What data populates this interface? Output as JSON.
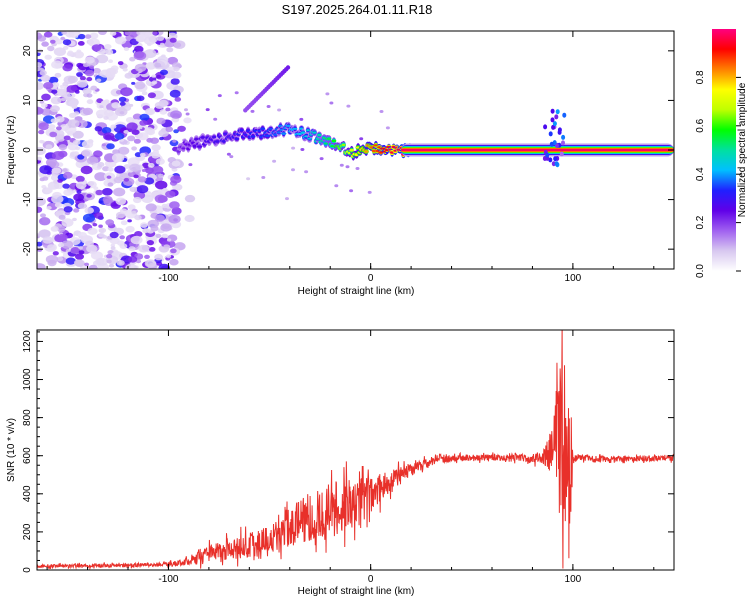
{
  "chart_data": [
    {
      "type": "heatmap",
      "title": "S197.2025.264.01.11.R18",
      "xlabel": "Height of straight line (km)",
      "ylabel": "Frequency (Hz)",
      "xlim": [
        -165,
        150
      ],
      "ylim": [
        -24,
        24
      ],
      "x_ticks": [
        -100,
        0,
        100
      ],
      "y_ticks": [
        -20,
        -10,
        0,
        10,
        20
      ],
      "colorbar": {
        "label": "Normalized spectral amplitude",
        "range": [
          0,
          1
        ],
        "ticks": [
          0.0,
          0.2,
          0.4,
          0.6,
          0.8
        ],
        "colormap": [
          "#ffffff",
          "#d8c8f0",
          "#a060f0",
          "#6000e8",
          "#2020ff",
          "#00c0ff",
          "#00e0a0",
          "#00ff00",
          "#c0ff00",
          "#ffff00",
          "#ff8000",
          "#ff0000",
          "#ff0080"
        ]
      },
      "ridge": {
        "description_free": true,
        "x": [
          -95,
          -90,
          -80,
          -70,
          -60,
          -50,
          -40,
          -30,
          -20,
          -10,
          0,
          10,
          20,
          30,
          50,
          70,
          80,
          85,
          90,
          93,
          95,
          100,
          120,
          150
        ],
        "y": [
          0.5,
          1.0,
          2.0,
          2.5,
          3.5,
          3.5,
          4.5,
          3.0,
          1.5,
          -0.5,
          0.5,
          0.0,
          0.0,
          0.0,
          0.0,
          0.0,
          0.0,
          0.0,
          1.0,
          3.0,
          0.5,
          0.0,
          0.0,
          0.0
        ],
        "amplitude": [
          0.22,
          0.25,
          0.28,
          0.3,
          0.33,
          0.35,
          0.4,
          0.45,
          0.55,
          0.7,
          0.85,
          0.95,
          0.98,
          0.98,
          0.98,
          0.98,
          0.9,
          0.85,
          0.5,
          0.4,
          0.9,
          0.98,
          0.98,
          0.98
        ]
      }
    },
    {
      "type": "line",
      "xlabel": "Height of straight line (km)",
      "ylabel": "SNR (10 * v/v)",
      "xlim": [
        -165,
        150
      ],
      "ylim": [
        0,
        1260
      ],
      "x_ticks": [
        -100,
        0,
        100
      ],
      "y_ticks": [
        0,
        200,
        400,
        600,
        800,
        1000,
        1200
      ],
      "series": [
        {
          "name": "SNR",
          "color": "#e8302a",
          "envelope_x": [
            -165,
            -140,
            -120,
            -100,
            -90,
            -80,
            -70,
            -60,
            -50,
            -40,
            -30,
            -20,
            -10,
            0,
            10,
            20,
            30,
            40,
            50,
            70,
            85,
            90,
            93,
            96,
            98,
            100,
            102,
            110,
            130,
            150
          ],
          "envelope_mean": [
            20,
            22,
            25,
            30,
            45,
            80,
            110,
            130,
            170,
            230,
            290,
            320,
            340,
            390,
            470,
            530,
            570,
            585,
            590,
            590,
            590,
            620,
            750,
            650,
            400,
            600,
            590,
            585,
            585,
            590
          ],
          "envelope_amp": [
            12,
            12,
            12,
            14,
            25,
            60,
            70,
            80,
            100,
            140,
            170,
            180,
            170,
            120,
            70,
            40,
            25,
            20,
            20,
            20,
            40,
            150,
            450,
            600,
            550,
            60,
            25,
            20,
            20,
            20
          ]
        }
      ]
    }
  ]
}
